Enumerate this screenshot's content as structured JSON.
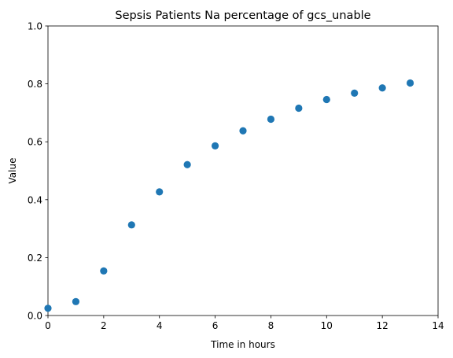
{
  "chart_data": {
    "type": "scatter",
    "title": "Sepsis Patients Na percentage of gcs_unable",
    "xlabel": "Time in hours",
    "ylabel": "Value",
    "xlim": [
      0,
      14
    ],
    "ylim": [
      0,
      1.0
    ],
    "xticks": [
      "0",
      "2",
      "4",
      "6",
      "8",
      "10",
      "12",
      "14"
    ],
    "yticks": [
      "0.0",
      "0.2",
      "0.4",
      "0.6",
      "0.8",
      "1.0"
    ],
    "grid": false,
    "series": [
      {
        "color": "#1f77b4",
        "x": [
          0,
          1,
          2,
          3,
          4,
          5,
          6,
          7,
          8,
          9,
          10,
          11,
          12,
          13
        ],
        "y": [
          0.025,
          0.048,
          0.154,
          0.313,
          0.427,
          0.521,
          0.586,
          0.638,
          0.678,
          0.716,
          0.746,
          0.768,
          0.786,
          0.803
        ]
      }
    ]
  }
}
